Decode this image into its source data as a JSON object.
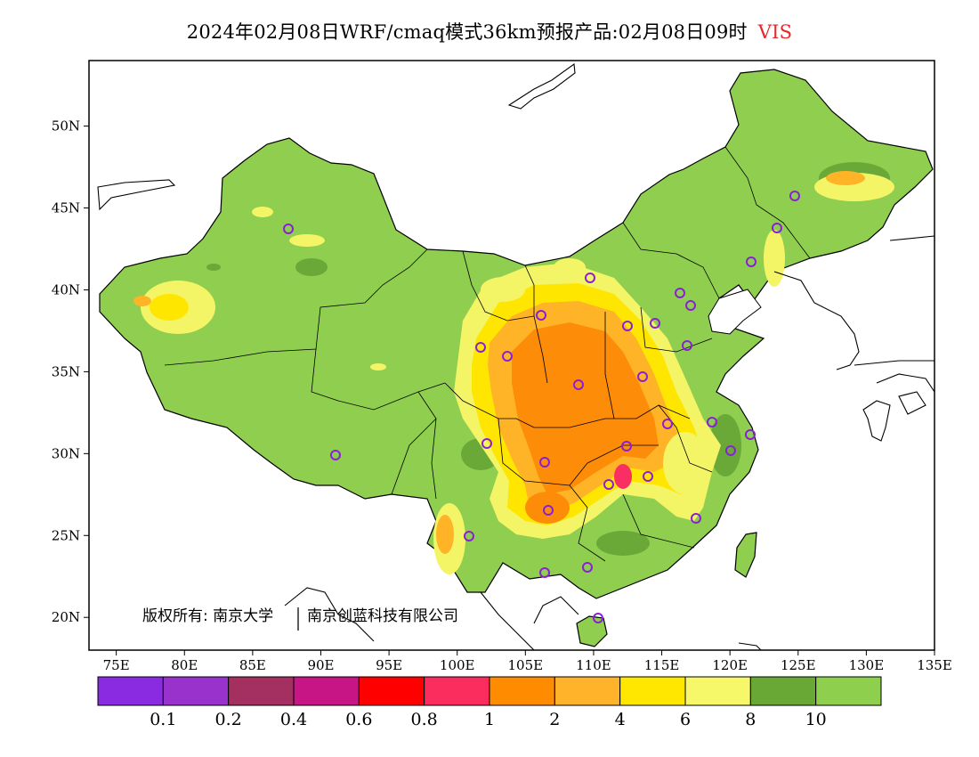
{
  "title": {
    "text": "2024年02月08日WRF/cmaq模式36km预报产品:02月08日09时",
    "variable": "VIS",
    "variable_color": "#e8262a"
  },
  "map": {
    "lon_range": [
      73,
      135
    ],
    "lat_range": [
      18,
      54
    ],
    "lon_ticks": [
      {
        "value": 75,
        "label": "75E"
      },
      {
        "value": 80,
        "label": "80E"
      },
      {
        "value": 85,
        "label": "85E"
      },
      {
        "value": 90,
        "label": "90E"
      },
      {
        "value": 95,
        "label": "95E"
      },
      {
        "value": 100,
        "label": "100E"
      },
      {
        "value": 105,
        "label": "105E"
      },
      {
        "value": 110,
        "label": "110E"
      },
      {
        "value": 115,
        "label": "115E"
      },
      {
        "value": 120,
        "label": "120E"
      },
      {
        "value": 125,
        "label": "125E"
      },
      {
        "value": 130,
        "label": "130E"
      },
      {
        "value": 135,
        "label": "135E"
      }
    ],
    "lat_ticks": [
      {
        "value": 20,
        "label": "20N"
      },
      {
        "value": 25,
        "label": "25N"
      },
      {
        "value": 30,
        "label": "30N"
      },
      {
        "value": 35,
        "label": "35N"
      },
      {
        "value": 40,
        "label": "40N"
      },
      {
        "value": 45,
        "label": "45N"
      },
      {
        "value": 50,
        "label": "50N"
      }
    ],
    "colors": {
      "good": "#8fce4e",
      "dark_green": "#6aa838",
      "yellow_light": "#f4f566",
      "yellow": "#ffe600",
      "orange_light": "#feb426",
      "orange": "#fd8c08",
      "red_pink": "#f92e63",
      "station": "#8a1fd8",
      "border": "#000000"
    },
    "copyright": {
      "text_left": "版权所有: 南京大学",
      "text_right": "南京创蓝科技有限公司"
    }
  },
  "legend": {
    "colors": [
      "#8a2be2",
      "#9932cc",
      "#a33060",
      "#c71585",
      "#ff0000",
      "#fa2d5e",
      "#ff8c00",
      "#ffb32b",
      "#ffe700",
      "#f7f76a",
      "#6aa835",
      "#8ecf4d"
    ],
    "labels": [
      "0.1",
      "0.2",
      "0.4",
      "0.6",
      "0.8",
      "1",
      "2",
      "4",
      "6",
      "8",
      "10"
    ]
  }
}
